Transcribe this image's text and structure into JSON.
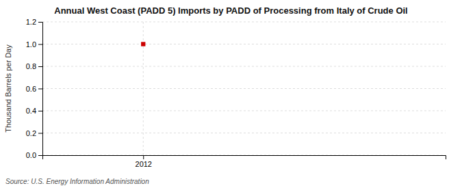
{
  "chart_data": {
    "type": "scatter",
    "title": "Annual West Coast (PADD 5) Imports by PADD of Processing from Italy of Crude Oil",
    "ylabel": "Thousand Barrels per Day",
    "source": "Source: U.S. Energy Information Administration",
    "x": [
      2012
    ],
    "values": [
      1.0
    ],
    "color": "#cc0000",
    "marker": "square",
    "xlim": [
      2011.5,
      2013.5
    ],
    "xticks": [
      2012
    ],
    "ylim": [
      0.0,
      1.2
    ],
    "yticks": [
      {
        "value": 0.0,
        "label": "0.0"
      },
      0.2,
      0.4,
      0.6,
      0.8,
      {
        "value": 1.0,
        "label": "1.0"
      },
      1.2
    ],
    "grid": true
  }
}
